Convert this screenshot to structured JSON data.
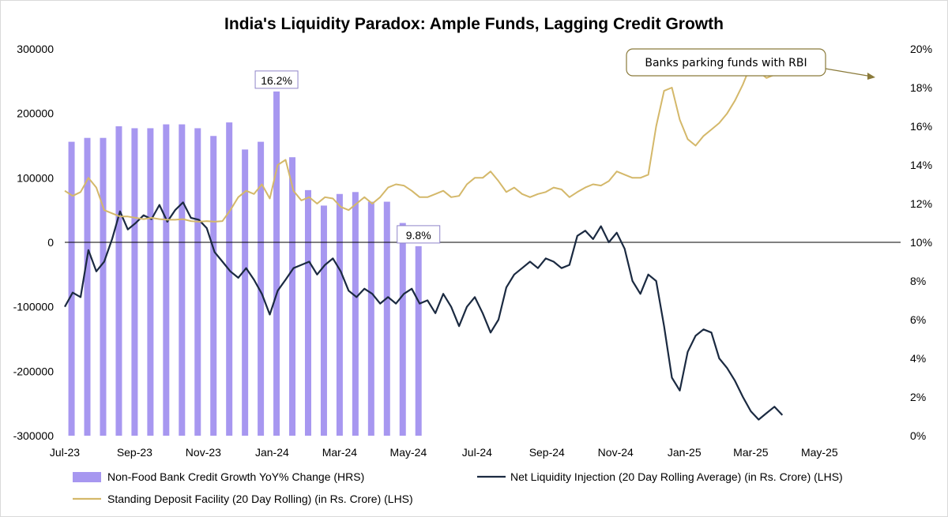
{
  "chart_data": {
    "type": "bar+line",
    "title": "India's Liquidity Paradox: Ample Funds, Lagging Credit Growth",
    "x_tick_labels": [
      "Jul-23",
      "Sep-23",
      "Nov-23",
      "Jan-24",
      "Mar-24",
      "May-24",
      "Jul-24",
      "Sep-24",
      "Nov-24",
      "Jan-25",
      "Mar-25",
      "May-25"
    ],
    "y_left": {
      "min": -300000,
      "max": 300000,
      "ticks": [
        300000,
        200000,
        100000,
        0,
        -100000,
        -200000,
        -300000
      ],
      "tick_labels": [
        "300000",
        "200000",
        "100000",
        "0",
        "-100000",
        "-200000",
        "-300000"
      ]
    },
    "y_right": {
      "min": 0,
      "max": 20,
      "unit": "%",
      "ticks": [
        20,
        18,
        16,
        14,
        12,
        10,
        8,
        6,
        4,
        2,
        0
      ],
      "tick_labels": [
        "20%",
        "18%",
        "16%",
        "14%",
        "12%",
        "10%",
        "8%",
        "6%",
        "4%",
        "2%",
        "0%"
      ]
    },
    "bar_series": {
      "name": "Non-Food Bank Credit Growth YoY% Change (HRS)",
      "axis": "right",
      "color": "#a797f0",
      "points": [
        {
          "date": "2023-07-07",
          "value": 15.2
        },
        {
          "date": "2023-07-21",
          "value": 15.4
        },
        {
          "date": "2023-08-04",
          "value": 15.4
        },
        {
          "date": "2023-08-18",
          "value": 16.0
        },
        {
          "date": "2023-09-01",
          "value": 15.9
        },
        {
          "date": "2023-09-15",
          "value": 15.9
        },
        {
          "date": "2023-09-29",
          "value": 16.1
        },
        {
          "date": "2023-10-13",
          "value": 16.1
        },
        {
          "date": "2023-10-27",
          "value": 15.9
        },
        {
          "date": "2023-11-10",
          "value": 15.5
        },
        {
          "date": "2023-11-24",
          "value": 16.2
        },
        {
          "date": "2023-12-08",
          "value": 14.8
        },
        {
          "date": "2023-12-22",
          "value": 15.2
        },
        {
          "date": "2024-01-05",
          "value": 17.8
        },
        {
          "date": "2024-01-19",
          "value": 14.4
        },
        {
          "date": "2024-02-02",
          "value": 12.7
        },
        {
          "date": "2024-02-16",
          "value": 11.9
        },
        {
          "date": "2024-03-01",
          "value": 12.5
        },
        {
          "date": "2024-03-15",
          "value": 12.6
        },
        {
          "date": "2024-03-29",
          "value": 12.1
        },
        {
          "date": "2024-04-12",
          "value": 12.1
        },
        {
          "date": "2024-04-26",
          "value": 11.0
        },
        {
          "date": "2024-05-10",
          "value": 9.8
        }
      ],
      "label_on_series": [
        "16.2%",
        "9.8%"
      ]
    },
    "line_series": [
      {
        "name": "Net Liquidity Injection (20 Day Rolling Average)  (in Rs. Crore) (LHS)",
        "axis": "left",
        "color": "#1b2a41",
        "points": [
          {
            "date": "2023-07-01",
            "value": -100000
          },
          {
            "date": "2023-07-08",
            "value": -78000
          },
          {
            "date": "2023-07-15",
            "value": -85000
          },
          {
            "date": "2023-07-22",
            "value": -12000
          },
          {
            "date": "2023-07-29",
            "value": -45000
          },
          {
            "date": "2023-08-05",
            "value": -30000
          },
          {
            "date": "2023-08-12",
            "value": 5000
          },
          {
            "date": "2023-08-19",
            "value": 48000
          },
          {
            "date": "2023-08-26",
            "value": 20000
          },
          {
            "date": "2023-09-02",
            "value": 30000
          },
          {
            "date": "2023-09-09",
            "value": 42000
          },
          {
            "date": "2023-09-16",
            "value": 36000
          },
          {
            "date": "2023-09-23",
            "value": 58000
          },
          {
            "date": "2023-09-30",
            "value": 32000
          },
          {
            "date": "2023-10-07",
            "value": 50000
          },
          {
            "date": "2023-10-14",
            "value": 62000
          },
          {
            "date": "2023-10-21",
            "value": 38000
          },
          {
            "date": "2023-10-28",
            "value": 35000
          },
          {
            "date": "2023-11-04",
            "value": 22000
          },
          {
            "date": "2023-11-11",
            "value": -15000
          },
          {
            "date": "2023-11-18",
            "value": -30000
          },
          {
            "date": "2023-11-25",
            "value": -45000
          },
          {
            "date": "2023-12-02",
            "value": -55000
          },
          {
            "date": "2023-12-09",
            "value": -40000
          },
          {
            "date": "2023-12-16",
            "value": -58000
          },
          {
            "date": "2023-12-23",
            "value": -80000
          },
          {
            "date": "2023-12-30",
            "value": -112000
          },
          {
            "date": "2024-01-06",
            "value": -75000
          },
          {
            "date": "2024-01-13",
            "value": -58000
          },
          {
            "date": "2024-01-20",
            "value": -40000
          },
          {
            "date": "2024-01-27",
            "value": -35000
          },
          {
            "date": "2024-02-03",
            "value": -30000
          },
          {
            "date": "2024-02-10",
            "value": -50000
          },
          {
            "date": "2024-02-17",
            "value": -35000
          },
          {
            "date": "2024-02-24",
            "value": -25000
          },
          {
            "date": "2024-03-02",
            "value": -45000
          },
          {
            "date": "2024-03-09",
            "value": -75000
          },
          {
            "date": "2024-03-16",
            "value": -85000
          },
          {
            "date": "2024-03-23",
            "value": -72000
          },
          {
            "date": "2024-03-30",
            "value": -80000
          },
          {
            "date": "2024-04-06",
            "value": -95000
          },
          {
            "date": "2024-04-13",
            "value": -85000
          },
          {
            "date": "2024-04-20",
            "value": -95000
          },
          {
            "date": "2024-04-27",
            "value": -80000
          },
          {
            "date": "2024-05-04",
            "value": -72000
          },
          {
            "date": "2024-05-11",
            "value": -95000
          },
          {
            "date": "2024-05-18",
            "value": -90000
          },
          {
            "date": "2024-05-25",
            "value": -110000
          },
          {
            "date": "2024-06-01",
            "value": -80000
          },
          {
            "date": "2024-06-08",
            "value": -100000
          },
          {
            "date": "2024-06-15",
            "value": -130000
          },
          {
            "date": "2024-06-22",
            "value": -100000
          },
          {
            "date": "2024-06-29",
            "value": -85000
          },
          {
            "date": "2024-07-06",
            "value": -110000
          },
          {
            "date": "2024-07-13",
            "value": -140000
          },
          {
            "date": "2024-07-20",
            "value": -120000
          },
          {
            "date": "2024-07-27",
            "value": -70000
          },
          {
            "date": "2024-08-03",
            "value": -50000
          },
          {
            "date": "2024-08-10",
            "value": -40000
          },
          {
            "date": "2024-08-17",
            "value": -30000
          },
          {
            "date": "2024-08-24",
            "value": -40000
          },
          {
            "date": "2024-08-31",
            "value": -25000
          },
          {
            "date": "2024-09-07",
            "value": -30000
          },
          {
            "date": "2024-09-14",
            "value": -40000
          },
          {
            "date": "2024-09-21",
            "value": -35000
          },
          {
            "date": "2024-09-28",
            "value": 10000
          },
          {
            "date": "2024-10-05",
            "value": 18000
          },
          {
            "date": "2024-10-12",
            "value": 5000
          },
          {
            "date": "2024-10-19",
            "value": 25000
          },
          {
            "date": "2024-10-26",
            "value": 0
          },
          {
            "date": "2024-11-02",
            "value": 15000
          },
          {
            "date": "2024-11-09",
            "value": -10000
          },
          {
            "date": "2024-11-16",
            "value": -60000
          },
          {
            "date": "2024-11-23",
            "value": -80000
          },
          {
            "date": "2024-11-30",
            "value": -50000
          },
          {
            "date": "2024-12-07",
            "value": -60000
          },
          {
            "date": "2024-12-14",
            "value": -130000
          },
          {
            "date": "2024-12-21",
            "value": -210000
          },
          {
            "date": "2024-12-28",
            "value": -230000
          },
          {
            "date": "2025-01-04",
            "value": -170000
          },
          {
            "date": "2025-01-11",
            "value": -145000
          },
          {
            "date": "2025-01-18",
            "value": -135000
          },
          {
            "date": "2025-01-25",
            "value": -140000
          },
          {
            "date": "2025-02-01",
            "value": -180000
          },
          {
            "date": "2025-02-08",
            "value": -195000
          },
          {
            "date": "2025-02-15",
            "value": -215000
          },
          {
            "date": "2025-02-22",
            "value": -240000
          },
          {
            "date": "2025-03-01",
            "value": -262000
          },
          {
            "date": "2025-03-08",
            "value": -275000
          },
          {
            "date": "2025-03-15",
            "value": -265000
          },
          {
            "date": "2025-03-22",
            "value": -255000
          },
          {
            "date": "2025-03-29",
            "value": -268000
          }
        ]
      },
      {
        "name": "Standing Deposit Facility (20 Day Rolling) (in Rs. Crore) (LHS)",
        "axis": "left",
        "color": "#d4b86a",
        "points": [
          {
            "date": "2023-07-01",
            "value": 80000
          },
          {
            "date": "2023-07-08",
            "value": 72000
          },
          {
            "date": "2023-07-15",
            "value": 78000
          },
          {
            "date": "2023-07-22",
            "value": 100000
          },
          {
            "date": "2023-07-29",
            "value": 85000
          },
          {
            "date": "2023-08-05",
            "value": 50000
          },
          {
            "date": "2023-08-12",
            "value": 45000
          },
          {
            "date": "2023-08-19",
            "value": 40000
          },
          {
            "date": "2023-08-26",
            "value": 40000
          },
          {
            "date": "2023-09-02",
            "value": 38000
          },
          {
            "date": "2023-09-09",
            "value": 36000
          },
          {
            "date": "2023-09-16",
            "value": 38000
          },
          {
            "date": "2023-09-23",
            "value": 36000
          },
          {
            "date": "2023-09-30",
            "value": 35000
          },
          {
            "date": "2023-10-07",
            "value": 35000
          },
          {
            "date": "2023-10-14",
            "value": 36000
          },
          {
            "date": "2023-10-21",
            "value": 33000
          },
          {
            "date": "2023-10-28",
            "value": 32000
          },
          {
            "date": "2023-11-04",
            "value": 33000
          },
          {
            "date": "2023-11-11",
            "value": 32000
          },
          {
            "date": "2023-11-18",
            "value": 33000
          },
          {
            "date": "2023-11-25",
            "value": 50000
          },
          {
            "date": "2023-12-02",
            "value": 70000
          },
          {
            "date": "2023-12-09",
            "value": 80000
          },
          {
            "date": "2023-12-16",
            "value": 75000
          },
          {
            "date": "2023-12-23",
            "value": 90000
          },
          {
            "date": "2023-12-30",
            "value": 68000
          },
          {
            "date": "2024-01-06",
            "value": 120000
          },
          {
            "date": "2024-01-13",
            "value": 128000
          },
          {
            "date": "2024-01-20",
            "value": 80000
          },
          {
            "date": "2024-01-27",
            "value": 65000
          },
          {
            "date": "2024-02-03",
            "value": 70000
          },
          {
            "date": "2024-02-10",
            "value": 60000
          },
          {
            "date": "2024-02-17",
            "value": 70000
          },
          {
            "date": "2024-02-24",
            "value": 68000
          },
          {
            "date": "2024-03-02",
            "value": 55000
          },
          {
            "date": "2024-03-09",
            "value": 50000
          },
          {
            "date": "2024-03-16",
            "value": 60000
          },
          {
            "date": "2024-03-23",
            "value": 70000
          },
          {
            "date": "2024-03-30",
            "value": 60000
          },
          {
            "date": "2024-04-06",
            "value": 70000
          },
          {
            "date": "2024-04-13",
            "value": 85000
          },
          {
            "date": "2024-04-20",
            "value": 90000
          },
          {
            "date": "2024-04-27",
            "value": 88000
          },
          {
            "date": "2024-05-04",
            "value": 80000
          },
          {
            "date": "2024-05-11",
            "value": 70000
          },
          {
            "date": "2024-05-18",
            "value": 70000
          },
          {
            "date": "2024-05-25",
            "value": 75000
          },
          {
            "date": "2024-06-01",
            "value": 80000
          },
          {
            "date": "2024-06-08",
            "value": 70000
          },
          {
            "date": "2024-06-15",
            "value": 72000
          },
          {
            "date": "2024-06-22",
            "value": 90000
          },
          {
            "date": "2024-06-29",
            "value": 100000
          },
          {
            "date": "2024-07-06",
            "value": 100000
          },
          {
            "date": "2024-07-13",
            "value": 110000
          },
          {
            "date": "2024-07-20",
            "value": 95000
          },
          {
            "date": "2024-07-27",
            "value": 78000
          },
          {
            "date": "2024-08-03",
            "value": 85000
          },
          {
            "date": "2024-08-10",
            "value": 75000
          },
          {
            "date": "2024-08-17",
            "value": 70000
          },
          {
            "date": "2024-08-24",
            "value": 75000
          },
          {
            "date": "2024-08-31",
            "value": 78000
          },
          {
            "date": "2024-09-07",
            "value": 85000
          },
          {
            "date": "2024-09-14",
            "value": 82000
          },
          {
            "date": "2024-09-21",
            "value": 70000
          },
          {
            "date": "2024-09-28",
            "value": 78000
          },
          {
            "date": "2024-10-05",
            "value": 85000
          },
          {
            "date": "2024-10-12",
            "value": 90000
          },
          {
            "date": "2024-10-19",
            "value": 88000
          },
          {
            "date": "2024-10-26",
            "value": 95000
          },
          {
            "date": "2024-11-02",
            "value": 110000
          },
          {
            "date": "2024-11-09",
            "value": 105000
          },
          {
            "date": "2024-11-16",
            "value": 100000
          },
          {
            "date": "2024-11-23",
            "value": 100000
          },
          {
            "date": "2024-11-30",
            "value": 105000
          },
          {
            "date": "2024-12-07",
            "value": 180000
          },
          {
            "date": "2024-12-14",
            "value": 235000
          },
          {
            "date": "2024-12-21",
            "value": 240000
          },
          {
            "date": "2024-12-28",
            "value": 190000
          },
          {
            "date": "2025-01-04",
            "value": 160000
          },
          {
            "date": "2025-01-11",
            "value": 150000
          },
          {
            "date": "2025-01-18",
            "value": 165000
          },
          {
            "date": "2025-01-25",
            "value": 175000
          },
          {
            "date": "2025-02-01",
            "value": 185000
          },
          {
            "date": "2025-02-08",
            "value": 200000
          },
          {
            "date": "2025-02-15",
            "value": 220000
          },
          {
            "date": "2025-02-22",
            "value": 245000
          },
          {
            "date": "2025-03-01",
            "value": 275000
          },
          {
            "date": "2025-03-08",
            "value": 265000
          },
          {
            "date": "2025-03-15",
            "value": 255000
          },
          {
            "date": "2025-03-22",
            "value": 260000
          }
        ]
      }
    ],
    "annotation": {
      "text": "Banks parking funds with RBI"
    },
    "grid": false,
    "legend_position": "bottom"
  }
}
